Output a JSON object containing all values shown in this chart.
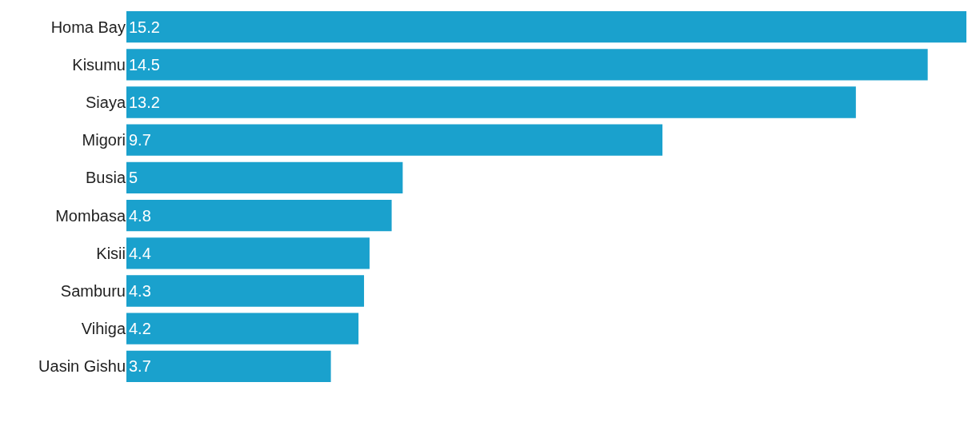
{
  "chart_data": {
    "type": "bar",
    "orientation": "horizontal",
    "categories": [
      "Homa Bay",
      "Kisumu",
      "Siaya",
      "Migori",
      "Busia",
      "Mombasa",
      "Kisii",
      "Samburu",
      "Vihiga",
      "Uasin Gishu"
    ],
    "values": [
      15.2,
      14.5,
      13.2,
      9.7,
      5,
      4.8,
      4.4,
      4.3,
      4.2,
      3.7
    ],
    "color": "#1aa1cd",
    "data_labels": true,
    "grid": false,
    "legend": false,
    "tick_labels": "y"
  }
}
